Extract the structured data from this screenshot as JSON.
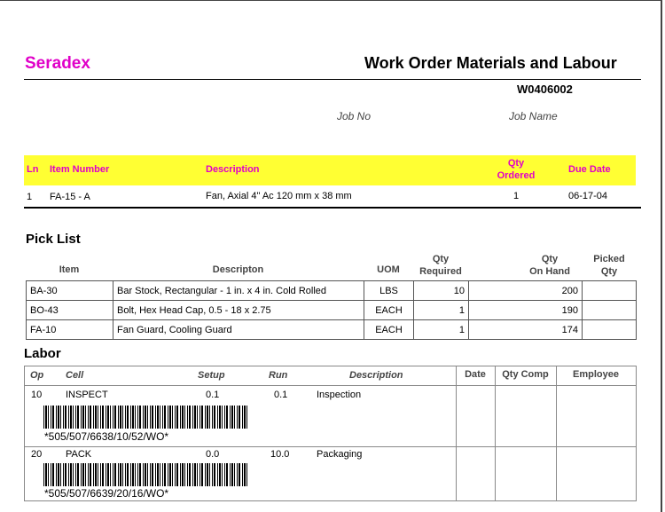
{
  "brand": "Seradex",
  "title": "Work Order Materials and Labour",
  "work_order": "W0406002",
  "job": {
    "no_label": "Job No",
    "name_label": "Job Name"
  },
  "header": {
    "ln": "Ln",
    "item_number": "Item Number",
    "description": "Description",
    "qty_ordered_1": "Qty",
    "qty_ordered_2": "Ordered",
    "due_date": "Due Date"
  },
  "line": {
    "ln": "1",
    "item_number": "FA-15 - A",
    "description": "Fan, Axial 4\" Ac 120 mm x 38 mm",
    "qty": "1",
    "due_date": "06-17-04"
  },
  "pick_list": {
    "title": "Pick List",
    "headers": {
      "item": "Item",
      "description": "Descripton",
      "uom": "UOM",
      "qty_req_1": "Qty",
      "qty_req_2": "Required",
      "qty_hand_1": "Qty",
      "qty_hand_2": "On Hand",
      "picked_1": "Picked",
      "picked_2": "Qty"
    },
    "rows": [
      {
        "item": "BA-30",
        "description": "Bar Stock, Rectangular - 1 in. x 4 in. Cold Rolled",
        "uom": "LBS",
        "qty_required": "10",
        "qty_on_hand": "200",
        "picked": ""
      },
      {
        "item": "BO-43",
        "description": "Bolt, Hex Head Cap, 0.5 - 18 x 2.75",
        "uom": "EACH",
        "qty_required": "1",
        "qty_on_hand": "190",
        "picked": ""
      },
      {
        "item": "FA-10",
        "description": "Fan Guard, Cooling Guard",
        "uom": "EACH",
        "qty_required": "1",
        "qty_on_hand": "174",
        "picked": ""
      }
    ]
  },
  "labor": {
    "title": "Labor",
    "headers": {
      "op": "Op",
      "cell": "Cell",
      "setup": "Setup",
      "run": "Run",
      "description": "Description",
      "date": "Date",
      "qty_comp": "Qty Comp",
      "employee": "Employee"
    },
    "rows": [
      {
        "op": "10",
        "cell": "INSPECT",
        "setup": "0.1",
        "run": "0.1",
        "description": "Inspection",
        "barcode": "*505/507/6638/10/52/WO*"
      },
      {
        "op": "20",
        "cell": "PACK",
        "setup": "0.0",
        "run": "10.0",
        "description": "Packaging",
        "barcode": "*505/507/6639/20/16/WO*"
      }
    ]
  },
  "colors": {
    "brand": "#e000c8",
    "header_band": "#ffff33"
  }
}
